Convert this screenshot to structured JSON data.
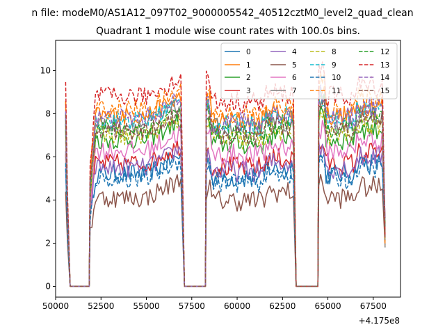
{
  "figure": {
    "suptitle": "n file: modeM0/AS1A12_097T02_9000005542_40512cztM0_level2_quad_clean"
  },
  "chart_data": {
    "type": "line",
    "title": "Quadrant 1 module wise count rates with 100.0s bins.",
    "xlabel": "",
    "ylabel": "",
    "x_offset_label": "+4.175e8",
    "xlim": [
      50000,
      69000
    ],
    "ylim": [
      -0.5,
      11.4
    ],
    "x_ticks": [
      50000,
      52500,
      55000,
      57500,
      60000,
      62500,
      65000,
      67500
    ],
    "x_tick_labels": [
      "50000",
      "52500",
      "55000",
      "57500",
      "60000",
      "62500",
      "65000",
      "67500"
    ],
    "y_ticks": [
      0,
      2,
      4,
      6,
      8,
      10
    ],
    "y_tick_labels": [
      "0",
      "2",
      "4",
      "6",
      "8",
      "10"
    ],
    "grid": false,
    "legend_placement": "top-right",
    "segments": [
      [
        50550,
        50800
      ],
      [
        51850,
        57000
      ],
      [
        58250,
        63200
      ],
      [
        64450,
        68150
      ]
    ],
    "zero_gaps": [
      [
        50800,
        51850
      ],
      [
        57000,
        58250
      ],
      [
        63200,
        64450
      ]
    ],
    "series": [
      {
        "name": "0",
        "color": "#1f77b4",
        "dash": "solid",
        "mean": 5.2
      },
      {
        "name": "1",
        "color": "#ff7f0e",
        "dash": "solid",
        "mean": 7.9
      },
      {
        "name": "2",
        "color": "#2ca02c",
        "dash": "solid",
        "mean": 6.8
      },
      {
        "name": "3",
        "color": "#d62728",
        "dash": "solid",
        "mean": 5.7
      },
      {
        "name": "4",
        "color": "#9467bd",
        "dash": "solid",
        "mean": 5.5
      },
      {
        "name": "5",
        "color": "#8c564b",
        "dash": "solid",
        "mean": 4.1
      },
      {
        "name": "6",
        "color": "#e377c2",
        "dash": "solid",
        "mean": 6.3
      },
      {
        "name": "7",
        "color": "#7f7f7f",
        "dash": "solid",
        "mean": 7.5
      },
      {
        "name": "8",
        "color": "#bcbd22",
        "dash": "dashed",
        "mean": 7.0
      },
      {
        "name": "9",
        "color": "#17becf",
        "dash": "dashed",
        "mean": 7.7
      },
      {
        "name": "10",
        "color": "#1f77b4",
        "dash": "dashed",
        "mean": 5.0
      },
      {
        "name": "11",
        "color": "#ff7f0e",
        "dash": "dashed",
        "mean": 8.2
      },
      {
        "name": "12",
        "color": "#2ca02c",
        "dash": "dashed",
        "mean": 7.3
      },
      {
        "name": "13",
        "color": "#d62728",
        "dash": "dashed",
        "mean": 8.8
      },
      {
        "name": "14",
        "color": "#9467bd",
        "dash": "dashed",
        "mean": 7.8
      },
      {
        "name": "15",
        "color": "#8c564b",
        "dash": "dashed",
        "mean": 7.2
      }
    ]
  }
}
